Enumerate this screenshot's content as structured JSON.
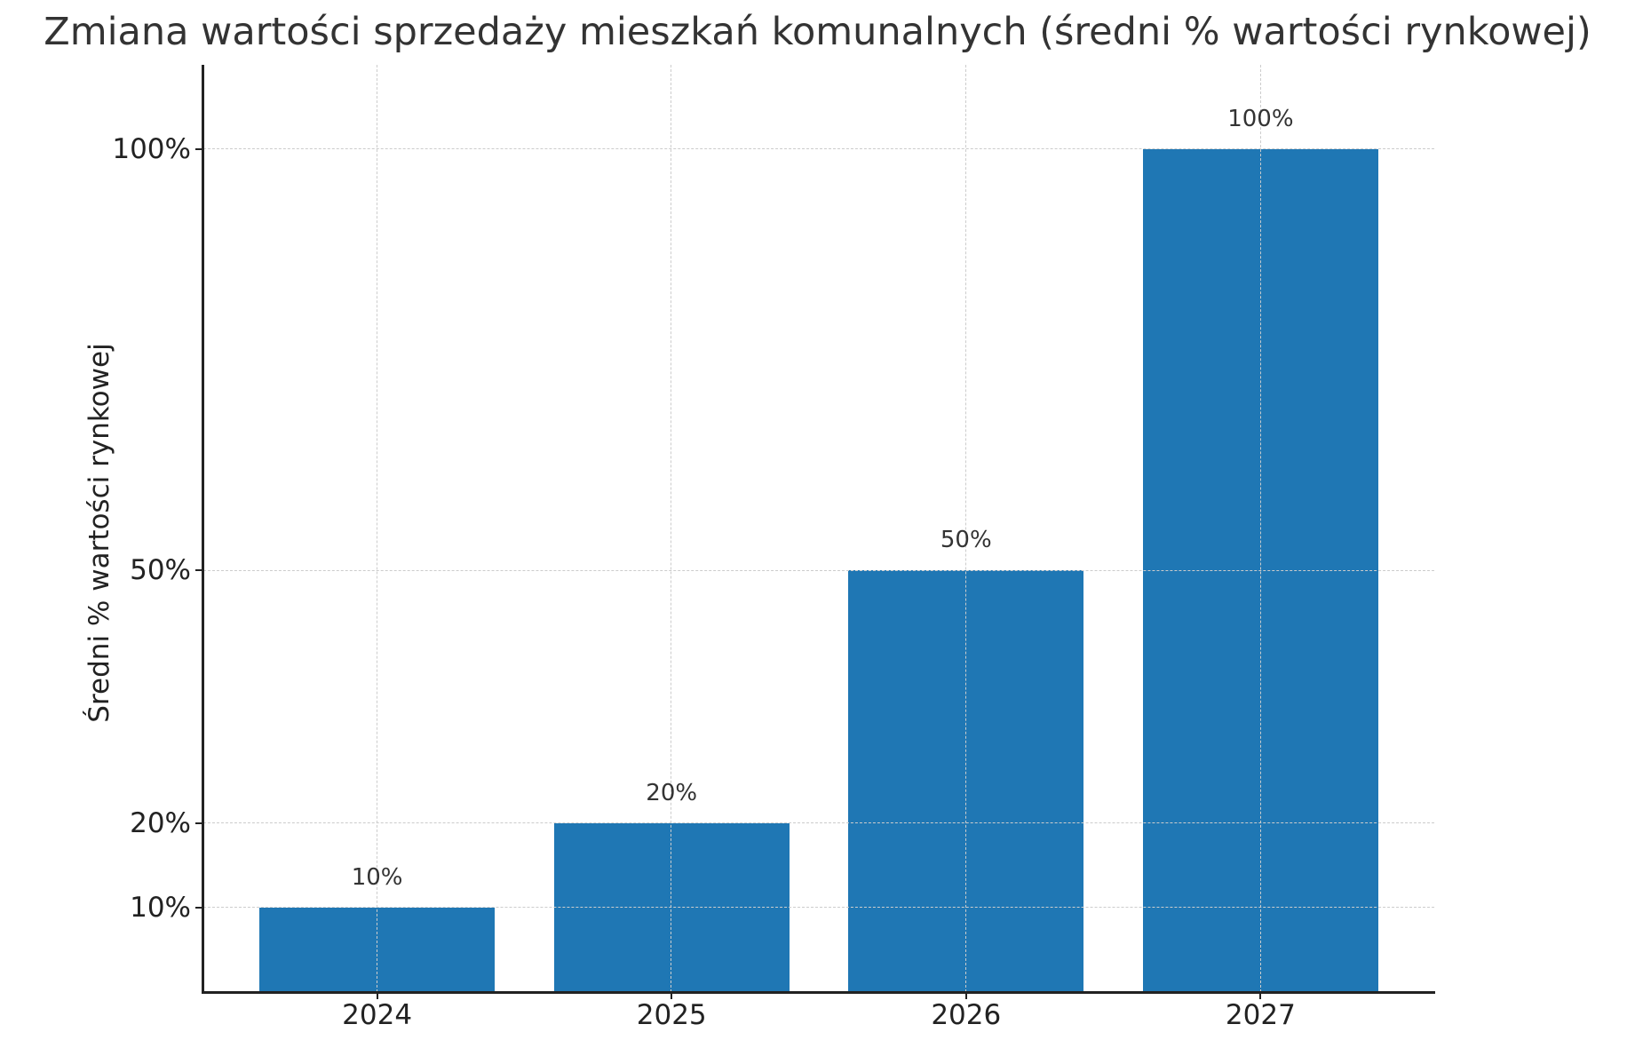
{
  "chart_data": {
    "type": "bar",
    "title": "Zmiana wartości sprzedaży mieszkań komunalnych (średni % wartości rynkowej)",
    "xlabel": "",
    "ylabel": "Średni % wartości rynkowej",
    "categories": [
      "2024",
      "2025",
      "2026",
      "2027"
    ],
    "values": [
      10,
      20,
      50,
      100
    ],
    "value_labels": [
      "10%",
      "20%",
      "50%",
      "100%"
    ],
    "yticks": [
      10,
      20,
      50,
      100
    ],
    "ytick_labels": [
      "10%",
      "20%",
      "50%",
      "100%"
    ],
    "ylim": [
      0,
      110
    ],
    "xlim": [
      -0.59,
      3.59
    ],
    "bar_width": 0.8,
    "grid": true,
    "legend": null,
    "colors": {
      "bar": "#1f77b4",
      "grid": "#cccccc",
      "axis": "#222222",
      "text": "#333333"
    }
  }
}
